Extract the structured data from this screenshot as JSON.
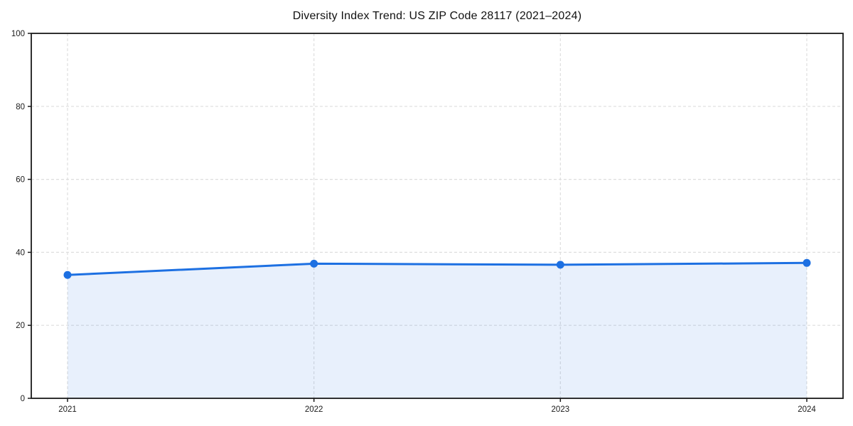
{
  "chart_data": {
    "type": "area",
    "title": "Diversity Index Trend: US ZIP Code 28117 (2021–2024)",
    "x": [
      "2021",
      "2022",
      "2023",
      "2024"
    ],
    "series": [
      {
        "name": "Diversity Index",
        "values": [
          33.8,
          36.9,
          36.6,
          37.1
        ]
      }
    ],
    "xlabel": "",
    "ylabel": "",
    "ylim": [
      0,
      100
    ],
    "yticks": [
      0,
      20,
      40,
      60,
      80,
      100
    ],
    "grid": true,
    "legend": "none",
    "colors": {
      "line": "#1d70e2",
      "marker": "#1d70e2",
      "fill": "#1d70e2",
      "fill_opacity": 0.1,
      "gridline": "#dedede",
      "spine": "#1a1a1a",
      "tick_text": "#1a1a1a",
      "background": "#ffffff"
    }
  }
}
